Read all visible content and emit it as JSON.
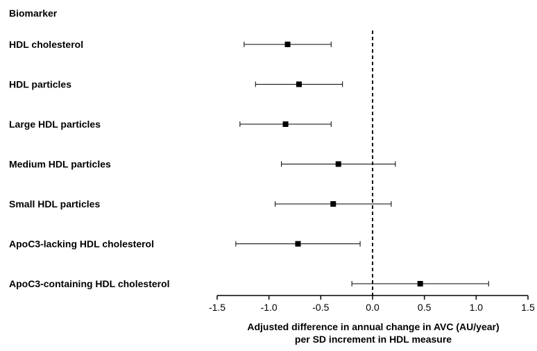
{
  "chart_data": {
    "type": "forest",
    "header": "Biomarker",
    "xlabel_line1": "Adjusted difference in annual change in AVC (AU/year)",
    "xlabel_line2": "per SD increment in HDL measure",
    "xlim": [
      -1.5,
      1.5
    ],
    "xticks": [
      {
        "value": -1.5,
        "label": "-1.5"
      },
      {
        "value": -1.0,
        "label": "-1.0"
      },
      {
        "value": -0.5,
        "label": "-0.5"
      },
      {
        "value": 0.0,
        "label": "0.0"
      },
      {
        "value": 0.5,
        "label": "0.5"
      },
      {
        "value": 1.0,
        "label": "1.0"
      },
      {
        "value": 1.5,
        "label": "1.5"
      }
    ],
    "reference_line": 0,
    "rows": [
      {
        "label": "HDL cholesterol",
        "estimate": -0.82,
        "lower": -1.24,
        "upper": -0.4
      },
      {
        "label": "HDL particles",
        "estimate": -0.71,
        "lower": -1.13,
        "upper": -0.29
      },
      {
        "label": "Large HDL particles",
        "estimate": -0.84,
        "lower": -1.28,
        "upper": -0.4
      },
      {
        "label": "Medium HDL particles",
        "estimate": -0.33,
        "lower": -0.88,
        "upper": 0.22
      },
      {
        "label": "Small HDL particles",
        "estimate": -0.38,
        "lower": -0.94,
        "upper": 0.18
      },
      {
        "label": "ApoC3-lacking HDL cholesterol",
        "estimate": -0.72,
        "lower": -1.32,
        "upper": -0.12
      },
      {
        "label": "ApoC3-containing HDL cholesterol",
        "estimate": 0.46,
        "lower": -0.2,
        "upper": 1.12
      }
    ]
  }
}
